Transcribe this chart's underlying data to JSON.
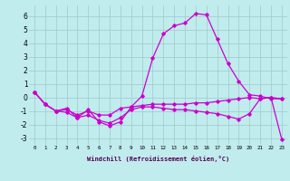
{
  "xlabel": "Windchill (Refroidissement éolien,°C)",
  "xlim": [
    -0.5,
    23.5
  ],
  "ylim": [
    -3.5,
    6.8
  ],
  "xticks": [
    0,
    1,
    2,
    3,
    4,
    5,
    6,
    7,
    8,
    9,
    10,
    11,
    12,
    13,
    14,
    15,
    16,
    17,
    18,
    19,
    20,
    21,
    22,
    23
  ],
  "yticks": [
    -3,
    -2,
    -1,
    0,
    1,
    2,
    3,
    4,
    5,
    6
  ],
  "background_color": "#c0ecee",
  "grid_color": "#a0c8ca",
  "line_color": "#cc00cc",
  "line1_x": [
    0,
    1,
    2,
    3,
    4,
    5,
    6,
    7,
    8,
    9,
    10,
    11,
    12,
    13,
    14,
    15,
    16,
    17,
    18,
    19,
    20,
    21,
    22,
    23
  ],
  "line1_y": [
    0.4,
    -0.5,
    -1.0,
    -0.8,
    -1.5,
    -0.9,
    -1.8,
    -2.1,
    -1.8,
    -0.7,
    0.1,
    2.9,
    4.7,
    5.3,
    5.5,
    6.2,
    6.1,
    4.3,
    2.5,
    1.2,
    0.2,
    0.1,
    -0.1,
    -0.1
  ],
  "line2_x": [
    0,
    1,
    2,
    3,
    4,
    5,
    6,
    7,
    8,
    9,
    10,
    11,
    12,
    13,
    14,
    15,
    16,
    17,
    18,
    19,
    20,
    21,
    22,
    23
  ],
  "line2_y": [
    0.4,
    -0.5,
    -1.0,
    -0.9,
    -1.3,
    -1.0,
    -1.3,
    -1.3,
    -0.8,
    -0.7,
    -0.6,
    -0.5,
    -0.5,
    -0.5,
    -0.5,
    -0.4,
    -0.4,
    -0.3,
    -0.2,
    -0.1,
    0.0,
    -0.1,
    0.0,
    -0.1
  ],
  "line3_x": [
    0,
    1,
    2,
    3,
    4,
    5,
    6,
    7,
    8,
    9,
    10,
    11,
    12,
    13,
    14,
    15,
    16,
    17,
    18,
    19,
    20,
    21,
    22,
    23
  ],
  "line3_y": [
    0.4,
    -0.5,
    -1.0,
    -1.1,
    -1.5,
    -1.3,
    -1.7,
    -1.9,
    -1.5,
    -0.9,
    -0.7,
    -0.7,
    -0.8,
    -0.9,
    -0.9,
    -1.0,
    -1.1,
    -1.2,
    -1.4,
    -1.6,
    -1.2,
    -0.1,
    0.0,
    -3.1
  ]
}
